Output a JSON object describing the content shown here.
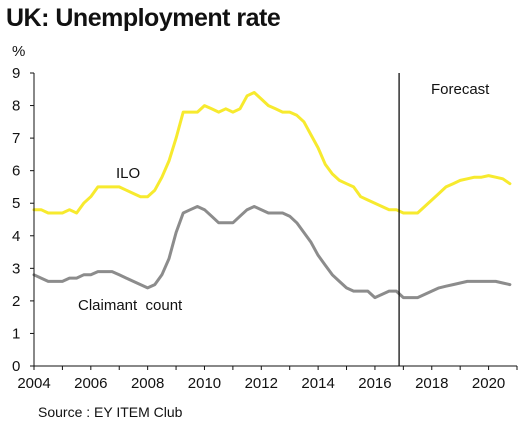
{
  "title": "UK: Unemployment rate",
  "source": "Source : EY ITEM Club",
  "colors": {
    "ilo": "#f7ea2e",
    "claimant": "#8c8c8c",
    "axis": "#111111"
  },
  "chart_data": {
    "type": "line",
    "title": "UK: Unemployment rate",
    "ylabel": "%",
    "xlabel": "",
    "xlim": [
      2004,
      2021
    ],
    "ylim": [
      0,
      9
    ],
    "yticks": [
      0,
      1,
      2,
      3,
      4,
      5,
      6,
      7,
      8,
      9
    ],
    "xticks": [
      2004,
      2006,
      2008,
      2010,
      2012,
      2014,
      2016,
      2018,
      2020
    ],
    "grid": false,
    "forecast_line_x": 2016.85,
    "annotations": {
      "forecast": "Forecast",
      "ilo": "ILO",
      "claimant": "Claimant  count"
    },
    "series": [
      {
        "name": "ILO",
        "x": [
          2004.0,
          2004.25,
          2004.5,
          2004.75,
          2005.0,
          2005.25,
          2005.5,
          2005.75,
          2006.0,
          2006.25,
          2006.5,
          2006.75,
          2007.0,
          2007.25,
          2007.5,
          2007.75,
          2008.0,
          2008.25,
          2008.5,
          2008.75,
          2009.0,
          2009.25,
          2009.5,
          2009.75,
          2010.0,
          2010.25,
          2010.5,
          2010.75,
          2011.0,
          2011.25,
          2011.5,
          2011.75,
          2012.0,
          2012.25,
          2012.5,
          2012.75,
          2013.0,
          2013.25,
          2013.5,
          2013.75,
          2014.0,
          2014.25,
          2014.5,
          2014.75,
          2015.0,
          2015.25,
          2015.5,
          2015.75,
          2016.0,
          2016.25,
          2016.5,
          2016.75,
          2017.0,
          2017.25,
          2017.5,
          2017.75,
          2018.0,
          2018.25,
          2018.5,
          2018.75,
          2019.0,
          2019.25,
          2019.5,
          2019.75,
          2020.0,
          2020.25,
          2020.5,
          2020.75
        ],
        "values": [
          4.8,
          4.8,
          4.7,
          4.7,
          4.7,
          4.8,
          4.7,
          5.0,
          5.2,
          5.5,
          5.5,
          5.5,
          5.5,
          5.4,
          5.3,
          5.2,
          5.2,
          5.4,
          5.8,
          6.3,
          7.0,
          7.8,
          7.8,
          7.8,
          8.0,
          7.9,
          7.8,
          7.9,
          7.8,
          7.9,
          8.3,
          8.4,
          8.2,
          8.0,
          7.9,
          7.8,
          7.8,
          7.7,
          7.5,
          7.1,
          6.7,
          6.2,
          5.9,
          5.7,
          5.6,
          5.5,
          5.2,
          5.1,
          5.0,
          4.9,
          4.8,
          4.8,
          4.7,
          4.7,
          4.7,
          4.9,
          5.1,
          5.3,
          5.5,
          5.6,
          5.7,
          5.75,
          5.8,
          5.8,
          5.85,
          5.8,
          5.75,
          5.6
        ]
      },
      {
        "name": "Claimant count",
        "x": [
          2004.0,
          2004.25,
          2004.5,
          2004.75,
          2005.0,
          2005.25,
          2005.5,
          2005.75,
          2006.0,
          2006.25,
          2006.5,
          2006.75,
          2007.0,
          2007.25,
          2007.5,
          2007.75,
          2008.0,
          2008.25,
          2008.5,
          2008.75,
          2009.0,
          2009.25,
          2009.5,
          2009.75,
          2010.0,
          2010.25,
          2010.5,
          2010.75,
          2011.0,
          2011.25,
          2011.5,
          2011.75,
          2012.0,
          2012.25,
          2012.5,
          2012.75,
          2013.0,
          2013.25,
          2013.5,
          2013.75,
          2014.0,
          2014.25,
          2014.5,
          2014.75,
          2015.0,
          2015.25,
          2015.5,
          2015.75,
          2016.0,
          2016.25,
          2016.5,
          2016.75,
          2017.0,
          2017.25,
          2017.5,
          2017.75,
          2018.0,
          2018.25,
          2018.5,
          2018.75,
          2019.0,
          2019.25,
          2019.5,
          2019.75,
          2020.0,
          2020.25,
          2020.5,
          2020.75
        ],
        "values": [
          2.8,
          2.7,
          2.6,
          2.6,
          2.6,
          2.7,
          2.7,
          2.8,
          2.8,
          2.9,
          2.9,
          2.9,
          2.8,
          2.7,
          2.6,
          2.5,
          2.4,
          2.5,
          2.8,
          3.3,
          4.1,
          4.7,
          4.8,
          4.9,
          4.8,
          4.6,
          4.4,
          4.4,
          4.4,
          4.6,
          4.8,
          4.9,
          4.8,
          4.7,
          4.7,
          4.7,
          4.6,
          4.4,
          4.1,
          3.8,
          3.4,
          3.1,
          2.8,
          2.6,
          2.4,
          2.3,
          2.3,
          2.3,
          2.1,
          2.2,
          2.3,
          2.3,
          2.1,
          2.1,
          2.1,
          2.2,
          2.3,
          2.4,
          2.45,
          2.5,
          2.55,
          2.6,
          2.6,
          2.6,
          2.6,
          2.6,
          2.55,
          2.5
        ]
      }
    ]
  }
}
